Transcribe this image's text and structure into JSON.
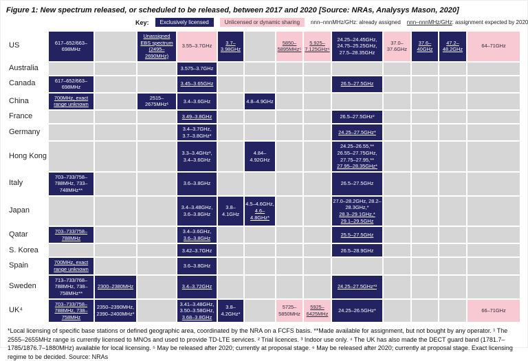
{
  "title": "Figure 1: New spectrum released, or scheduled to be released, between 2017 and 2020 [Source: NRAs, Analysys Mason, 2020]",
  "key": {
    "label": "Key:",
    "items": [
      {
        "style": "navy",
        "label": "Exclusively licensed"
      },
      {
        "style": "pink",
        "label": "Unlicensed or dynamic sharing"
      },
      {
        "style": "plain",
        "label": "nnn–nnnMHz/GHz: already assigned"
      },
      {
        "style": "plain-underline",
        "underlined_part": "nnn–nnnMHz/GHz",
        "rest": ": assignment expected by 2020"
      }
    ]
  },
  "colors": {
    "exclusively_licensed": "#232361",
    "unlicensed_dynamic": "#f8c8d3",
    "empty_cell": "#d6d6d6"
  },
  "table": {
    "rows": [
      {
        "country": "US",
        "cells": [
          {
            "color": "navy",
            "lines": [
              {
                "text": "617–652/663–698MHz",
                "underline": false
              }
            ]
          },
          null,
          {
            "color": "navy",
            "lines": [
              {
                "text": "Unassigned EBS spectrum (2495–2690MHz)",
                "underline": true
              }
            ]
          },
          {
            "color": "pink",
            "lines": [
              {
                "text": "3.55–3.7GHz",
                "underline": false
              }
            ]
          },
          {
            "color": "navy",
            "lines": [
              {
                "text": "3.7–3.98GHz",
                "underline": true
              }
            ]
          },
          null,
          {
            "color": "pink",
            "lines": [
              {
                "text": "5850–5895MHz⁵",
                "underline": true
              }
            ]
          },
          {
            "color": "pink",
            "lines": [
              {
                "text": "5.925–7.125GHz⁶",
                "underline": true
              }
            ]
          },
          {
            "color": "navy",
            "lines": [
              {
                "text": "24.25–24.45GHz, 24.75–25.25GHz, 27.5–28.35GHz",
                "underline": false
              }
            ]
          },
          {
            "color": "pink",
            "lines": [
              {
                "text": "37.0–37.6GHz",
                "underline": false
              }
            ]
          },
          {
            "color": "navy",
            "lines": [
              {
                "text": "37.6–40GHz",
                "underline": true
              }
            ]
          },
          {
            "color": "navy",
            "lines": [
              {
                "text": "47.2–48.2GHz",
                "underline": true
              }
            ]
          },
          {
            "color": "pink",
            "lines": [
              {
                "text": "64–71GHz",
                "underline": false
              }
            ]
          }
        ]
      },
      {
        "country": "Australia",
        "cells": [
          null,
          null,
          null,
          {
            "color": "navy",
            "lines": [
              {
                "text": "3.575–3.7GHz",
                "underline": false
              }
            ]
          },
          null,
          null,
          null,
          null,
          null,
          null,
          null,
          null,
          null
        ]
      },
      {
        "country": "Canada",
        "cells": [
          {
            "color": "navy",
            "lines": [
              {
                "text": "617–652/663–698MHz",
                "underline": false
              }
            ]
          },
          null,
          null,
          {
            "color": "navy",
            "lines": [
              {
                "text": "3.45–3.65GHz",
                "underline": true
              }
            ]
          },
          null,
          null,
          null,
          null,
          {
            "color": "navy",
            "lines": [
              {
                "text": "26.5–27.5GHz",
                "underline": true
              }
            ]
          },
          null,
          null,
          null,
          null
        ]
      },
      {
        "country": "China",
        "cells": [
          {
            "color": "navy",
            "lines": [
              {
                "text": "700MHz, exact range unknown",
                "underline": true
              }
            ]
          },
          null,
          {
            "color": "navy",
            "lines": [
              {
                "text": "2515–2675MHz¹",
                "underline": false
              }
            ]
          },
          {
            "color": "navy",
            "lines": [
              {
                "text": "3.4–3.6GHz",
                "underline": false
              }
            ]
          },
          null,
          {
            "color": "navy",
            "lines": [
              {
                "text": "4.8–4.9GHz",
                "underline": false
              }
            ]
          },
          null,
          null,
          null,
          null,
          null,
          null,
          null
        ]
      },
      {
        "country": "France",
        "cells": [
          null,
          null,
          null,
          {
            "color": "navy",
            "lines": [
              {
                "text": "3.49–3.8GHz",
                "underline": true
              }
            ]
          },
          null,
          null,
          null,
          null,
          {
            "color": "navy",
            "lines": [
              {
                "text": "26.5–27.5GHz²",
                "underline": false
              }
            ]
          },
          null,
          null,
          null,
          null
        ]
      },
      {
        "country": "Germany",
        "cells": [
          null,
          null,
          null,
          {
            "color": "navy",
            "lines": [
              {
                "text": "3.4–3.7GHz, 3.7–3.8GHz*",
                "underline": false
              }
            ]
          },
          null,
          null,
          null,
          null,
          {
            "color": "navy",
            "lines": [
              {
                "text": "24.25–27.5GHz*",
                "underline": true
              }
            ]
          },
          null,
          null,
          null,
          null
        ]
      },
      {
        "country": "Hong Kong",
        "cells": [
          null,
          null,
          null,
          {
            "color": "navy",
            "lines": [
              {
                "text": "3.3–3.4GHz³, 3.4–3.6GHz",
                "underline": false
              }
            ]
          },
          null,
          {
            "color": "navy",
            "lines": [
              {
                "text": "4.84–4.92GHz",
                "underline": false
              }
            ]
          },
          null,
          null,
          {
            "color": "navy",
            "lines": [
              {
                "text": "24.25–26.55,** 26.55–27.75GHz, 27.75–27.95,**",
                "underline": false
              },
              {
                "text": "27.95–28.35GHz*",
                "underline": true
              }
            ]
          },
          null,
          null,
          null,
          null
        ]
      },
      {
        "country": "Italy",
        "cells": [
          {
            "color": "navy",
            "lines": [
              {
                "text": "703–733/758–788MHz, 733–748MHz**",
                "underline": false
              }
            ]
          },
          null,
          null,
          {
            "color": "navy",
            "lines": [
              {
                "text": "3.6–3.8GHz",
                "underline": false
              }
            ]
          },
          null,
          null,
          null,
          null,
          {
            "color": "navy",
            "lines": [
              {
                "text": "26.5–27.5GHz",
                "underline": false
              }
            ]
          },
          null,
          null,
          null,
          null
        ]
      },
      {
        "country": "Japan",
        "cells": [
          null,
          null,
          null,
          {
            "color": "navy",
            "lines": [
              {
                "text": "3.4–3.48GHz, 3.6–3.8GHz",
                "underline": false
              }
            ]
          },
          {
            "color": "navy",
            "lines": [
              {
                "text": "3.8–4.1GHz",
                "underline": false
              }
            ]
          },
          {
            "color": "navy",
            "lines": [
              {
                "text": "4.5–4.6GHz,",
                "underline": false
              },
              {
                "text": "4.6–4.8GHz*",
                "underline": true
              }
            ]
          },
          null,
          null,
          {
            "color": "navy",
            "lines": [
              {
                "text": "27.0–28.2GHz, 28.2–28.3GHz,*",
                "underline": false
              },
              {
                "text": "28.3–29.1GHz,*",
                "underline": true
              },
              {
                "text": "29.1–29.5GHz",
                "underline": true
              }
            ]
          },
          null,
          null,
          null,
          null
        ]
      },
      {
        "country": "Qatar",
        "cells": [
          {
            "color": "navy",
            "lines": [
              {
                "text": "703–733/758–788MHz",
                "underline": true
              }
            ]
          },
          null,
          null,
          {
            "color": "navy",
            "lines": [
              {
                "text": "3.4–3.6GHz,",
                "underline": false
              },
              {
                "text": "3.6–3.8GHz",
                "underline": true
              }
            ]
          },
          null,
          null,
          null,
          null,
          {
            "color": "navy",
            "lines": [
              {
                "text": "25.5–27.5GHz",
                "underline": true
              }
            ]
          },
          null,
          null,
          null,
          null
        ]
      },
      {
        "country": "S. Korea",
        "cells": [
          null,
          null,
          null,
          {
            "color": "navy",
            "lines": [
              {
                "text": "3.42–3.7GHz",
                "underline": false
              }
            ]
          },
          null,
          null,
          null,
          null,
          {
            "color": "navy",
            "lines": [
              {
                "text": "26.5–28.9GHz",
                "underline": false
              }
            ]
          },
          null,
          null,
          null,
          null
        ]
      },
      {
        "country": "Spain",
        "cells": [
          {
            "color": "navy",
            "lines": [
              {
                "text": "700MHz, exact range unknown",
                "underline": true
              }
            ]
          },
          null,
          null,
          {
            "color": "navy",
            "lines": [
              {
                "text": "3.6–3.8GHz",
                "underline": false
              }
            ]
          },
          null,
          null,
          null,
          null,
          null,
          null,
          null,
          null,
          null
        ]
      },
      {
        "country": "Sweden",
        "cells": [
          {
            "color": "navy",
            "lines": [
              {
                "text": "713–733/768–788MHz, 738–758MHz**",
                "underline": false
              }
            ]
          },
          {
            "color": "navy",
            "lines": [
              {
                "text": "2300–2380MHz",
                "underline": true
              }
            ]
          },
          null,
          {
            "color": "navy",
            "lines": [
              {
                "text": "3.4–3.72GHz",
                "underline": true
              }
            ]
          },
          null,
          null,
          null,
          null,
          {
            "color": "navy",
            "lines": [
              {
                "text": "24.25–27.5GHz*³",
                "underline": true
              }
            ]
          },
          null,
          null,
          null,
          null
        ]
      },
      {
        "country": "UK⁴",
        "cells": [
          {
            "color": "navy",
            "lines": [
              {
                "text": "703–733/758–788MHz, 738–758MHz",
                "underline": true
              }
            ]
          },
          {
            "color": "navy",
            "lines": [
              {
                "text": "2350–2390MHz, 2390–2400MHz*",
                "underline": false
              }
            ]
          },
          null,
          {
            "color": "navy",
            "lines": [
              {
                "text": "3.41–3.48GHz, 3.50–3.58GHz,",
                "underline": false
              },
              {
                "text": "3.68–3.8GHz",
                "underline": true
              }
            ]
          },
          {
            "color": "navy",
            "lines": [
              {
                "text": "3.8–4.2GHz*",
                "underline": false
              }
            ]
          },
          null,
          {
            "color": "pink",
            "lines": [
              {
                "text": "5725–5850MHz",
                "underline": false
              }
            ]
          },
          {
            "color": "pink",
            "lines": [
              {
                "text": "5925–6425MHz",
                "underline": true
              }
            ]
          },
          {
            "color": "navy",
            "lines": [
              {
                "text": "24.25–26.5GHz*",
                "underline": false
              }
            ]
          },
          null,
          null,
          null,
          {
            "color": "pink",
            "lines": [
              {
                "text": "66–71GHz",
                "underline": false
              }
            ]
          }
        ]
      }
    ]
  },
  "footnote": "*Local licensing of specific base stations or defined geographic area, coordinated by the NRA on a FCFS basis. **Made available for assignment, but not bought by any operator. ¹ The 2555–2655MHz range is currently licensed to MNOs and used to provide TD-LTE services. ² Trial licences. ³ Indoor use only. ⁴ The UK has also made the DECT guard band (1781.7–1785/1876.7–1880MHz) available for local licensing. ⁵ May be released after 2020; currently at proposal stage. ⁶ May be released after 2020; currently at proposal stage. Exact licensing regime to be decided. Source: NRAs"
}
